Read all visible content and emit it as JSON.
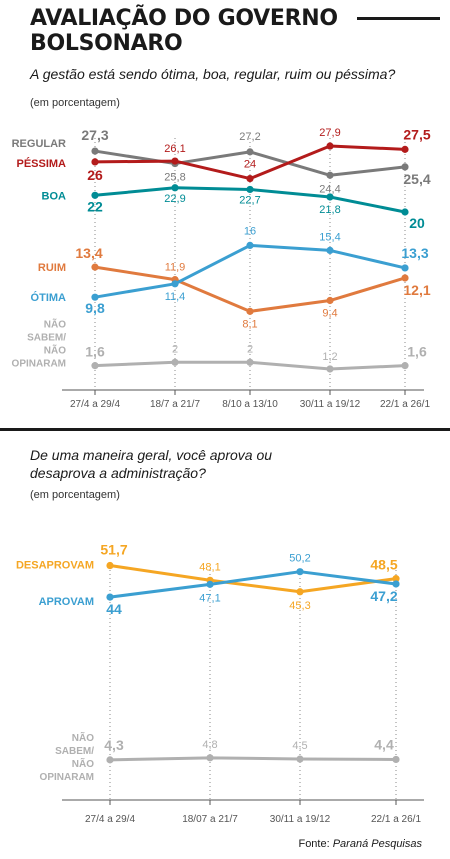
{
  "title": "AVALIAÇÃO DO GOVERNO BOLSONARO",
  "source_label": "Fonte:",
  "source_name": "Paraná Pesquisas",
  "chart_data": [
    {
      "type": "line",
      "question": "A gestão está sendo ótima, boa, regular, ruim ou péssima?",
      "unit": "(em porcentagem)",
      "categories": [
        "27/4 a 29/4",
        "18/7 a 21/7",
        "8/10 a 13/10",
        "30/11 a 19/12",
        "22/1 a 26/1"
      ],
      "ylim": [
        0,
        30
      ],
      "series": [
        {
          "name": "REGULAR",
          "color": "#7a7a7a",
          "values": [
            27.3,
            25.8,
            27.2,
            24.4,
            25.4
          ]
        },
        {
          "name": "PÉSSIMA",
          "color": "#b31b1b",
          "values": [
            26,
            26.1,
            24,
            27.9,
            27.5
          ]
        },
        {
          "name": "BOA",
          "color": "#008c95",
          "values": [
            22,
            22.9,
            22.7,
            21.8,
            20
          ]
        },
        {
          "name": "RUIM",
          "color": "#e07a3e",
          "values": [
            13.4,
            11.9,
            8.1,
            9.4,
            12.1
          ]
        },
        {
          "name": "ÓTIMA",
          "color": "#3b9fd1",
          "values": [
            9.8,
            11.4,
            16,
            15.4,
            13.3
          ]
        },
        {
          "name": "NÃO SABEM/ NÃO OPINARAM",
          "color": "#b0b0b0",
          "values": [
            1.6,
            2,
            2,
            1.2,
            1.6
          ]
        }
      ],
      "value_labels": {
        "REGULAR": [
          "27,3",
          "25,8",
          "27,2",
          "24,4",
          "25,4"
        ],
        "PÉSSIMA": [
          "26",
          "26,1",
          "24",
          "27,9",
          "27,5"
        ],
        "BOA": [
          "22",
          "22,9",
          "22,7",
          "21,8",
          "20"
        ],
        "RUIM": [
          "13,4",
          "11,9",
          "8,1",
          "9,4",
          "12,1"
        ],
        "ÓTIMA": [
          "9,8",
          "11,4",
          "16",
          "15,4",
          "13,3"
        ],
        "NÃO SABEM/ NÃO OPINARAM": [
          "1,6",
          "2",
          "2",
          "1,2",
          "1,6"
        ]
      },
      "legend": "left"
    },
    {
      "type": "line",
      "question": "De uma maneira geral, você aprova ou desaprova a administração?",
      "unit": "(em porcentagem)",
      "categories": [
        "27/4 a 29/4",
        "18/07 a 21/7",
        "30/11 a 19/12",
        "22/1 a 26/1"
      ],
      "ylim": [
        0,
        60
      ],
      "series": [
        {
          "name": "DESAPROVAM",
          "color": "#f5a623",
          "values": [
            51.7,
            48.1,
            45.3,
            48.5
          ]
        },
        {
          "name": "APROVAM",
          "color": "#3b9fd1",
          "values": [
            44,
            47.1,
            50.2,
            47.2
          ]
        },
        {
          "name": "NÃO SABEM/ NÃO OPINARAM",
          "color": "#b0b0b0",
          "values": [
            4.3,
            4.8,
            4.5,
            4.4
          ]
        }
      ],
      "value_labels": {
        "DESAPROVAM": [
          "51,7",
          "48,1",
          "45,3",
          "48,5"
        ],
        "APROVAM": [
          "44",
          "47,1",
          "50,2",
          "47,2"
        ],
        "NÃO SABEM/ NÃO OPINARAM": [
          "4,3",
          "4,8",
          "4,5",
          "4,4"
        ]
      },
      "legend": "left"
    }
  ]
}
